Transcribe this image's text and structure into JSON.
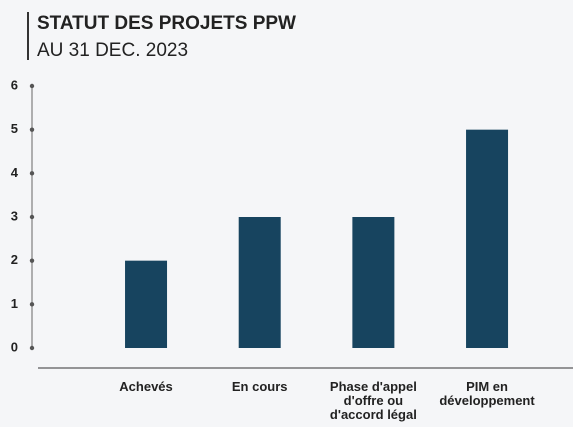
{
  "chart_data": {
    "type": "bar",
    "title": "STATUT DES PROJETS PPW",
    "subtitle": "AU 31 DEC. 2023",
    "categories": [
      "Achevés",
      "En cours",
      "Phase d'appel d'offre ou d'accord légal",
      "PIM en développement"
    ],
    "values": [
      2,
      3,
      3,
      5
    ],
    "color": "#17445f",
    "ylim": [
      0,
      6
    ],
    "yticks": [
      0,
      1,
      2,
      3,
      4,
      5,
      6
    ]
  }
}
